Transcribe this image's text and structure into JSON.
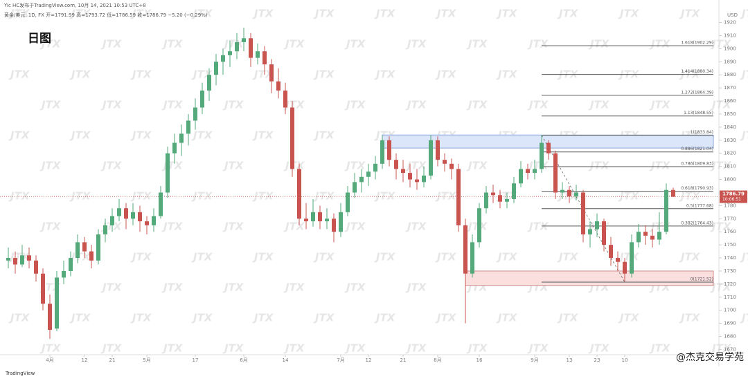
{
  "chart_data": {
    "type": "candlestick",
    "title": "日图",
    "header": {
      "source": "Yic HC发布于TradingView.com, 10月 14, 2021 10:53 UTC+8",
      "ohlc": "黄金/美元, 1D, FX  开=1791.99  高=1793.72  低=1786.59  收=1786.79  −5.20 (−0.29%)"
    },
    "currency": "USD",
    "watermark": "JTX",
    "logo": "TradingView",
    "credit": "@杰克交易学苑",
    "up_color": "#53a979",
    "down_color": "#c9544f",
    "ylim": [
      1666,
      1924
    ],
    "yticks": [
      1670,
      1680,
      1690,
      1700,
      1710,
      1720,
      1730,
      1740,
      1750,
      1760,
      1770,
      1780,
      1790,
      1800,
      1810,
      1820,
      1830,
      1840,
      1850,
      1860,
      1870,
      1880,
      1890,
      1900,
      1910,
      1920
    ],
    "xticks": [
      {
        "value": 6,
        "label": "4月"
      },
      {
        "value": 11,
        "label": "12"
      },
      {
        "value": 15,
        "label": "21"
      },
      {
        "value": 20,
        "label": "5月"
      },
      {
        "value": 27,
        "label": "17"
      },
      {
        "value": 34,
        "label": "6月"
      },
      {
        "value": 40,
        "label": "14"
      },
      {
        "value": 48,
        "label": "7月"
      },
      {
        "value": 52,
        "label": "12"
      },
      {
        "value": 57,
        "label": "21"
      },
      {
        "value": 62,
        "label": "8月"
      },
      {
        "value": 68,
        "label": "16"
      },
      {
        "value": 76,
        "label": "9月"
      },
      {
        "value": 81,
        "label": "13"
      },
      {
        "value": 85,
        "label": "23"
      },
      {
        "value": 89,
        "label": "10"
      }
    ],
    "candles": [
      [
        1738,
        1748,
        1732,
        1740
      ],
      [
        1740,
        1745,
        1728,
        1735
      ],
      [
        1735,
        1750,
        1733,
        1742
      ],
      [
        1742,
        1748,
        1732,
        1738
      ],
      [
        1738,
        1742,
        1722,
        1728
      ],
      [
        1728,
        1732,
        1700,
        1705
      ],
      [
        1705,
        1712,
        1678,
        1685
      ],
      [
        1686,
        1730,
        1684,
        1725
      ],
      [
        1725,
        1738,
        1720,
        1730
      ],
      [
        1730,
        1745,
        1726,
        1740
      ],
      [
        1740,
        1758,
        1736,
        1752
      ],
      [
        1752,
        1756,
        1740,
        1745
      ],
      [
        1745,
        1750,
        1732,
        1738
      ],
      [
        1738,
        1762,
        1735,
        1758
      ],
      [
        1758,
        1770,
        1752,
        1765
      ],
      [
        1765,
        1778,
        1760,
        1772
      ],
      [
        1772,
        1785,
        1768,
        1778
      ],
      [
        1778,
        1782,
        1762,
        1770
      ],
      [
        1770,
        1782,
        1765,
        1775
      ],
      [
        1775,
        1780,
        1760,
        1768
      ],
      [
        1768,
        1772,
        1758,
        1765
      ],
      [
        1765,
        1778,
        1760,
        1772
      ],
      [
        1772,
        1795,
        1770,
        1790
      ],
      [
        1790,
        1825,
        1786,
        1820
      ],
      [
        1820,
        1835,
        1812,
        1828
      ],
      [
        1828,
        1842,
        1818,
        1835
      ],
      [
        1835,
        1850,
        1826,
        1845
      ],
      [
        1845,
        1862,
        1838,
        1855
      ],
      [
        1855,
        1874,
        1850,
        1868
      ],
      [
        1868,
        1885,
        1860,
        1880
      ],
      [
        1880,
        1896,
        1872,
        1890
      ],
      [
        1890,
        1900,
        1880,
        1895
      ],
      [
        1895,
        1906,
        1886,
        1898
      ],
      [
        1898,
        1912,
        1892,
        1905
      ],
      [
        1905,
        1916,
        1898,
        1908
      ],
      [
        1908,
        1912,
        1886,
        1893
      ],
      [
        1893,
        1904,
        1888,
        1898
      ],
      [
        1898,
        1902,
        1880,
        1888
      ],
      [
        1888,
        1892,
        1866,
        1875
      ],
      [
        1875,
        1885,
        1862,
        1868
      ],
      [
        1868,
        1874,
        1850,
        1855
      ],
      [
        1855,
        1860,
        1802,
        1808
      ],
      [
        1808,
        1812,
        1765,
        1770
      ],
      [
        1770,
        1782,
        1762,
        1768
      ],
      [
        1768,
        1785,
        1764,
        1775
      ],
      [
        1775,
        1780,
        1762,
        1768
      ],
      [
        1768,
        1778,
        1762,
        1770
      ],
      [
        1770,
        1774,
        1752,
        1760
      ],
      [
        1760,
        1782,
        1756,
        1775
      ],
      [
        1775,
        1795,
        1772,
        1790
      ],
      [
        1790,
        1805,
        1786,
        1798
      ],
      [
        1798,
        1808,
        1790,
        1802
      ],
      [
        1802,
        1812,
        1795,
        1806
      ],
      [
        1806,
        1818,
        1800,
        1812
      ],
      [
        1812,
        1834,
        1808,
        1830
      ],
      [
        1830,
        1833,
        1810,
        1815
      ],
      [
        1815,
        1820,
        1800,
        1808
      ],
      [
        1808,
        1815,
        1798,
        1805
      ],
      [
        1805,
        1812,
        1794,
        1800
      ],
      [
        1800,
        1808,
        1792,
        1798
      ],
      [
        1798,
        1810,
        1794,
        1803
      ],
      [
        1803,
        1834,
        1800,
        1830
      ],
      [
        1830,
        1833,
        1810,
        1815
      ],
      [
        1815,
        1820,
        1806,
        1812
      ],
      [
        1812,
        1816,
        1800,
        1808
      ],
      [
        1808,
        1812,
        1760,
        1765
      ],
      [
        1765,
        1770,
        1690,
        1728
      ],
      [
        1728,
        1758,
        1725,
        1752
      ],
      [
        1752,
        1782,
        1748,
        1778
      ],
      [
        1778,
        1795,
        1774,
        1790
      ],
      [
        1790,
        1796,
        1782,
        1788
      ],
      [
        1788,
        1792,
        1778,
        1783
      ],
      [
        1783,
        1790,
        1778,
        1785
      ],
      [
        1785,
        1802,
        1782,
        1797
      ],
      [
        1797,
        1814,
        1794,
        1808
      ],
      [
        1808,
        1812,
        1800,
        1805
      ],
      [
        1805,
        1815,
        1800,
        1808
      ],
      [
        1808,
        1834,
        1805,
        1828
      ],
      [
        1828,
        1830,
        1815,
        1820
      ],
      [
        1820,
        1822,
        1785,
        1790
      ],
      [
        1790,
        1798,
        1785,
        1792
      ],
      [
        1792,
        1795,
        1782,
        1787
      ],
      [
        1787,
        1796,
        1784,
        1790
      ],
      [
        1790,
        1792,
        1752,
        1758
      ],
      [
        1758,
        1768,
        1748,
        1762
      ],
      [
        1762,
        1774,
        1756,
        1768
      ],
      [
        1768,
        1770,
        1745,
        1750
      ],
      [
        1750,
        1756,
        1734,
        1740
      ],
      [
        1740,
        1745,
        1730,
        1737
      ],
      [
        1737,
        1740,
        1722,
        1728
      ],
      [
        1728,
        1758,
        1725,
        1752
      ],
      [
        1752,
        1766,
        1748,
        1760
      ],
      [
        1760,
        1765,
        1750,
        1757
      ],
      [
        1757,
        1762,
        1748,
        1754
      ],
      [
        1754,
        1775,
        1750,
        1760
      ],
      [
        1760,
        1797,
        1758,
        1792
      ],
      [
        1791.99,
        1793.72,
        1786.59,
        1786.79
      ]
    ],
    "zones": [
      {
        "top": 1834,
        "bottom": 1824,
        "start": 54,
        "color": "#dbe6fb",
        "edge": "#8aa6dc"
      },
      {
        "top": 1730,
        "bottom": 1719,
        "start": 66,
        "color": "#fbdede",
        "edge": "#d08a8a"
      }
    ],
    "fib_start": 77,
    "fib_levels": [
      {
        "value": 1902.29,
        "label": "1.618(1902.29)"
      },
      {
        "value": 1880.34,
        "label": "1.414(1880.34)"
      },
      {
        "value": 1864.39,
        "label": "1.272(1864.39)"
      },
      {
        "value": 1848.55,
        "label": "1.13(1848.55)"
      },
      {
        "value": 1833.84,
        "label": "1(1833.84)"
      },
      {
        "value": 1821.04,
        "label": "0.886(1821.04)"
      },
      {
        "value": 1809.83,
        "label": "0.786(1809.83)"
      },
      {
        "value": 1790.93,
        "label": "0.618(1790.93)"
      },
      {
        "value": 1777.68,
        "label": "0.5(1777.68)"
      },
      {
        "value": 1764.43,
        "label": "0.382(1764.43)"
      },
      {
        "value": 1721.52,
        "label": "0(1721.52)"
      }
    ],
    "trend_line": {
      "from": [
        77,
        1833.84
      ],
      "to": [
        89,
        1721.52
      ]
    },
    "last_price": 1786.79,
    "countdown": "10:06:51"
  }
}
